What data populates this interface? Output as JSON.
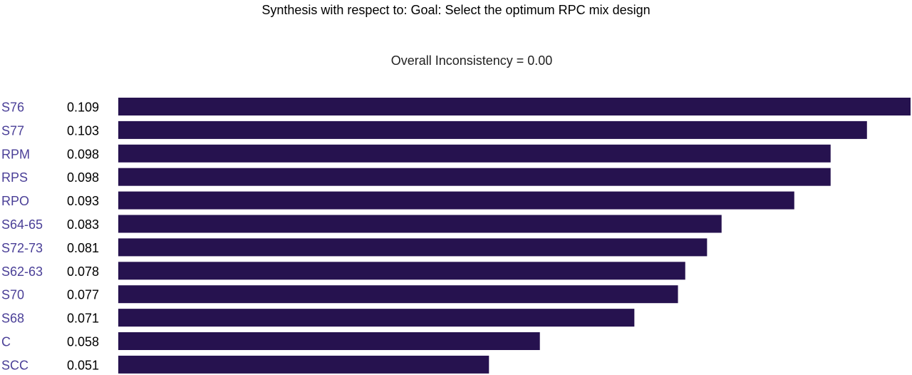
{
  "chart_data": {
    "type": "bar",
    "orientation": "horizontal",
    "title": "Synthesis with respect to: Goal: Select the optimum RPC mix design",
    "subtitle": "Overall Inconsistency =  0.00",
    "categories": [
      "S76",
      "S77",
      "RPM",
      "RPS",
      "RPO",
      "S64-65",
      "S72-73",
      "S62-63",
      "S70",
      "S68",
      "C",
      "SCC"
    ],
    "values": [
      0.109,
      0.103,
      0.098,
      0.098,
      0.093,
      0.083,
      0.081,
      0.078,
      0.077,
      0.071,
      0.058,
      0.051
    ],
    "value_labels": [
      "0.109",
      "0.103",
      "0.098",
      "0.098",
      "0.093",
      "0.083",
      "0.081",
      "0.078",
      "0.077",
      "0.071",
      "0.058",
      "0.051"
    ],
    "xlim": [
      0,
      0.109
    ],
    "grid": false,
    "legend": "none",
    "colors": {
      "bar": "#26124f",
      "category_label": "#4a3f97",
      "value_label": "#000000",
      "title": "#000000"
    }
  }
}
